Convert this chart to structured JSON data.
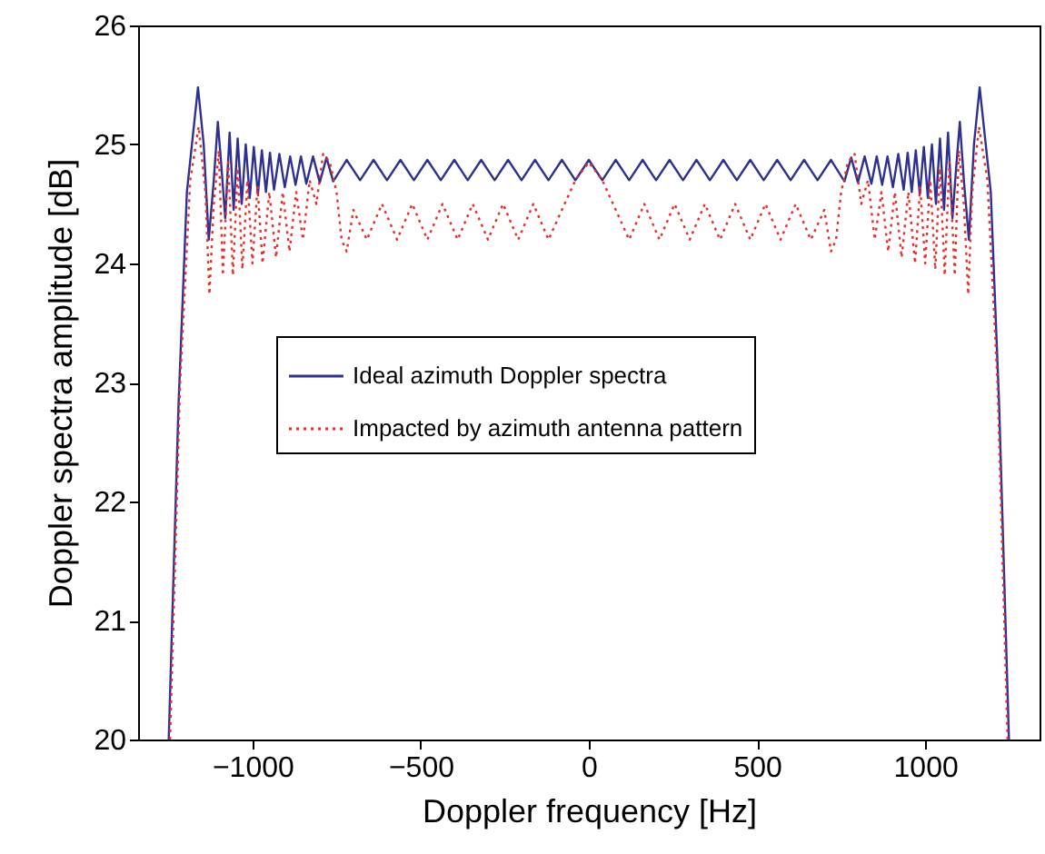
{
  "chart_data": {
    "type": "line",
    "xlabel": "Doppler frequency [Hz]",
    "ylabel": "Doppler spectra amplitude [dB]",
    "xlim": [
      -1340,
      1340
    ],
    "ylim": [
      20,
      26
    ],
    "xticks": [
      -1000,
      -500,
      0,
      500,
      1000
    ],
    "yticks": [
      20,
      21,
      22,
      23,
      24,
      25,
      26
    ],
    "grid": false,
    "legend": "center",
    "marker": "none",
    "series": [
      {
        "name": "Ideal azimuth Doppler spectra",
        "color": "#2e3192",
        "line_style": "solid",
        "x": [
          -1249,
          -1220,
          -1195,
          -1162,
          -1145,
          -1130,
          -1115,
          -1103,
          -1092,
          -1081,
          -1068,
          -1056,
          -1044,
          -1032,
          -1020,
          -1008,
          -996,
          -984,
          -972,
          -960,
          -948,
          -936,
          -920,
          -904,
          -888,
          -872,
          -856,
          -840,
          -820,
          -800,
          -780,
          -760,
          -720,
          -680,
          -640,
          -600,
          -560,
          -520,
          -480,
          -440,
          -400,
          -360,
          -320,
          -280,
          -240,
          -200,
          -160,
          -120,
          -80,
          -40,
          0,
          40,
          80,
          120,
          160,
          200,
          240,
          280,
          320,
          360,
          400,
          440,
          480,
          520,
          560,
          600,
          640,
          680,
          720,
          760,
          780,
          800,
          820,
          840,
          856,
          872,
          888,
          904,
          920,
          936,
          948,
          960,
          972,
          984,
          996,
          1008,
          1020,
          1032,
          1044,
          1056,
          1068,
          1081,
          1092,
          1103,
          1115,
          1130,
          1145,
          1162,
          1195,
          1220,
          1249
        ],
        "values": [
          20,
          22.8,
          24.6,
          25.48,
          25.0,
          24.2,
          24.7,
          25.19,
          24.8,
          24.38,
          25.1,
          24.45,
          25.05,
          24.5,
          25.0,
          24.55,
          24.98,
          24.58,
          24.95,
          24.6,
          24.93,
          24.62,
          24.92,
          24.64,
          24.9,
          24.66,
          24.9,
          24.67,
          24.9,
          24.68,
          24.89,
          24.69,
          24.87,
          24.7,
          24.87,
          24.7,
          24.87,
          24.7,
          24.87,
          24.7,
          24.87,
          24.7,
          24.87,
          24.7,
          24.87,
          24.7,
          24.87,
          24.7,
          24.87,
          24.7,
          24.87,
          24.7,
          24.87,
          24.7,
          24.87,
          24.7,
          24.87,
          24.7,
          24.87,
          24.7,
          24.87,
          24.7,
          24.87,
          24.7,
          24.87,
          24.7,
          24.87,
          24.7,
          24.87,
          24.69,
          24.89,
          24.68,
          24.9,
          24.67,
          24.9,
          24.66,
          24.9,
          24.64,
          24.92,
          24.62,
          24.93,
          24.6,
          24.95,
          24.58,
          24.98,
          24.55,
          25.0,
          24.5,
          25.05,
          24.45,
          25.1,
          24.38,
          24.8,
          25.19,
          24.7,
          24.2,
          25.0,
          25.48,
          24.6,
          22.8,
          20
        ]
      },
      {
        "name": "Impacted by azimuth antenna pattern",
        "color": "#e8302a",
        "line_style": "dotted",
        "x": [
          -1245,
          -1215,
          -1185,
          -1160,
          -1140,
          -1128,
          -1115,
          -1100,
          -1088,
          -1072,
          -1058,
          -1044,
          -1030,
          -1015,
          -1000,
          -985,
          -970,
          -950,
          -930,
          -910,
          -890,
          -870,
          -850,
          -830,
          -810,
          -790,
          -770,
          -750,
          -735,
          -720,
          -700,
          -660,
          -615,
          -570,
          -525,
          -480,
          -435,
          -390,
          -345,
          -300,
          -255,
          -210,
          -165,
          -120,
          -80,
          -40,
          0,
          40,
          80,
          120,
          165,
          210,
          255,
          300,
          345,
          390,
          435,
          480,
          525,
          570,
          615,
          660,
          700,
          720,
          735,
          750,
          770,
          790,
          810,
          830,
          850,
          870,
          890,
          910,
          930,
          950,
          970,
          985,
          1000,
          1015,
          1030,
          1044,
          1058,
          1072,
          1088,
          1100,
          1115,
          1128,
          1140,
          1160,
          1185,
          1215,
          1245
        ],
        "values": [
          20,
          23.0,
          24.7,
          25.15,
          24.6,
          23.74,
          24.5,
          24.95,
          23.9,
          24.85,
          23.9,
          24.8,
          23.95,
          24.7,
          24.0,
          24.65,
          24.0,
          24.6,
          24.05,
          24.6,
          24.1,
          24.6,
          24.2,
          24.7,
          24.5,
          24.92,
          24.85,
          24.6,
          24.2,
          24.1,
          24.45,
          24.2,
          24.5,
          24.2,
          24.5,
          24.2,
          24.5,
          24.2,
          24.5,
          24.2,
          24.5,
          24.2,
          24.5,
          24.2,
          24.45,
          24.7,
          24.85,
          24.7,
          24.45,
          24.2,
          24.5,
          24.2,
          24.5,
          24.2,
          24.5,
          24.2,
          24.5,
          24.2,
          24.5,
          24.2,
          24.5,
          24.2,
          24.45,
          24.1,
          24.2,
          24.6,
          24.85,
          24.92,
          24.5,
          24.7,
          24.2,
          24.6,
          24.1,
          24.6,
          24.05,
          24.6,
          24.0,
          24.65,
          24.0,
          24.7,
          23.95,
          24.8,
          23.9,
          24.85,
          23.9,
          24.95,
          24.5,
          23.74,
          24.6,
          25.15,
          24.7,
          23.0,
          20
        ]
      }
    ]
  }
}
